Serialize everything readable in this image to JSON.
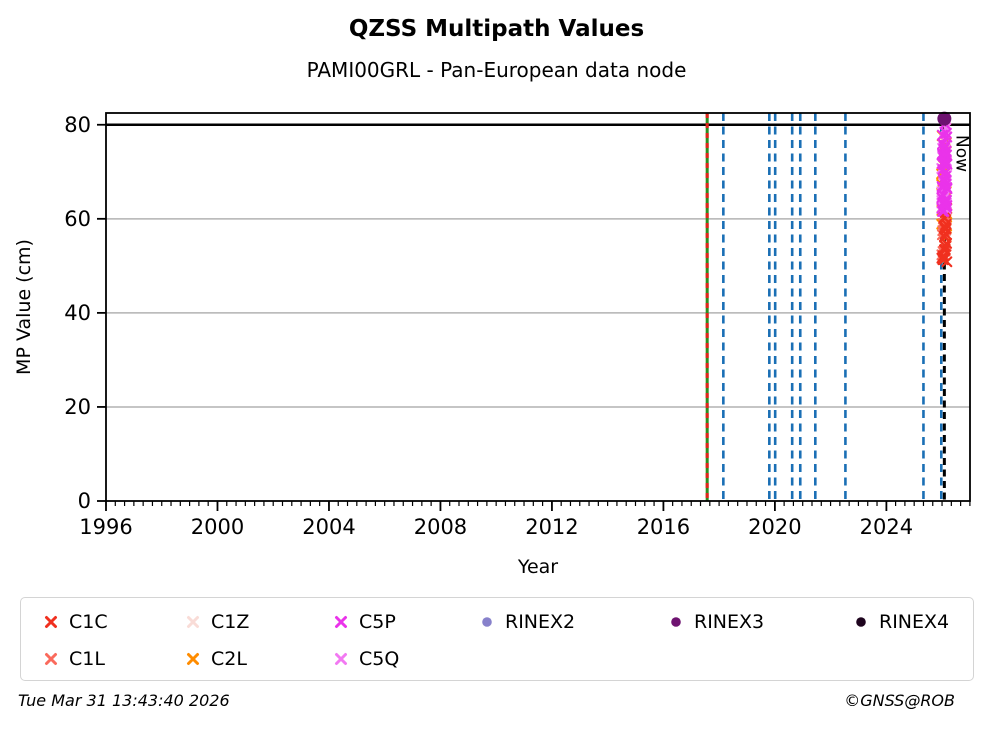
{
  "title": "QZSS Multipath Values",
  "subtitle": "PAMI00GRL - Pan-European data node",
  "footer": {
    "timestamp": "Tue Mar 31 13:43:40 2026",
    "credit": "©GNSS@ROB"
  },
  "legend": {
    "items": [
      {
        "label": "C1C",
        "marker": "x",
        "color": "#f0301f",
        "row": 0,
        "col": 0
      },
      {
        "label": "C1Z",
        "marker": "x",
        "color": "#f9dcd7",
        "row": 0,
        "col": 1
      },
      {
        "label": "C5P",
        "marker": "x",
        "color": "#ea33ea",
        "row": 0,
        "col": 2
      },
      {
        "label": "RINEX2",
        "marker": "circle",
        "color": "#8781cb",
        "row": 0,
        "col": 3
      },
      {
        "label": "RINEX3",
        "marker": "circle",
        "color": "#6e1270",
        "row": 0,
        "col": 4
      },
      {
        "label": "RINEX4",
        "marker": "circle",
        "color": "#1e041e",
        "row": 0,
        "col": 5
      },
      {
        "label": "C1L",
        "marker": "x",
        "color": "#fa6a5c",
        "row": 1,
        "col": 0
      },
      {
        "label": "C2L",
        "marker": "x",
        "color": "#ff8c00",
        "row": 1,
        "col": 1
      },
      {
        "label": "C5Q",
        "marker": "x",
        "color": "#f279f2",
        "row": 1,
        "col": 2
      }
    ]
  },
  "chart_data": {
    "type": "scatter",
    "title": "QZSS Multipath Values",
    "subtitle": "PAMI00GRL - Pan-European data node",
    "xlabel": "Year",
    "ylabel": "MP Value (cm)",
    "xlim": [
      1996,
      2027
    ],
    "ylim": [
      0,
      82.5
    ],
    "xticks": [
      1996,
      2000,
      2004,
      2008,
      2012,
      2016,
      2020,
      2024
    ],
    "yticks": [
      0,
      20,
      40,
      60,
      80
    ],
    "minor_tick_step_years": 0.3333,
    "grid": "horizontal-gray",
    "grid_color": "#b2b2b2",
    "hline": {
      "y": 80,
      "color": "#000000"
    },
    "event_lines": {
      "green_solid_with_red_dash_x": 2017.57,
      "green_color": "#2c8c22",
      "red_dash_color": "#e2251c",
      "blue_dashed_x": [
        2018.15,
        2019.8,
        2020.01,
        2020.62,
        2020.91,
        2021.45,
        2022.53,
        2025.33,
        2025.97
      ],
      "blue_color": "#1a6fb5",
      "now_x": 2026.08,
      "now_label": "Now",
      "now_color": "#000000"
    },
    "now_cluster": {
      "x_center": 2026.08,
      "x_jitter": 0.1,
      "note": "dense vertical column of multipath values observed at the Now epoch, MP values span ~50.5 to ~81 cm",
      "series": [
        {
          "name": "C1Z",
          "marker": "x",
          "color": "#f9dcd7",
          "count": 8,
          "vmin": 63.0,
          "vmax": 76.0
        },
        {
          "name": "C2L",
          "marker": "x",
          "color": "#ff8c00",
          "count": 20,
          "vmin": 55.0,
          "vmax": 80.2
        },
        {
          "name": "C1L",
          "marker": "x",
          "color": "#fa6a5c",
          "count": 22,
          "vmin": 52.0,
          "vmax": 65.0
        },
        {
          "name": "C1C",
          "marker": "x",
          "color": "#f0301f",
          "count": 26,
          "vmin": 50.5,
          "vmax": 63.0
        },
        {
          "name": "C5Q",
          "marker": "x",
          "color": "#f279f2",
          "count": 32,
          "vmin": 62.0,
          "vmax": 80.4
        },
        {
          "name": "C5P",
          "marker": "x",
          "color": "#ea33ea",
          "count": 46,
          "vmin": 61.5,
          "vmax": 80.8
        }
      ],
      "rinex3_point": {
        "name": "RINEX3",
        "marker": "circle",
        "color": "#6e1270",
        "x": 2026.08,
        "y": 81.3
      }
    }
  }
}
